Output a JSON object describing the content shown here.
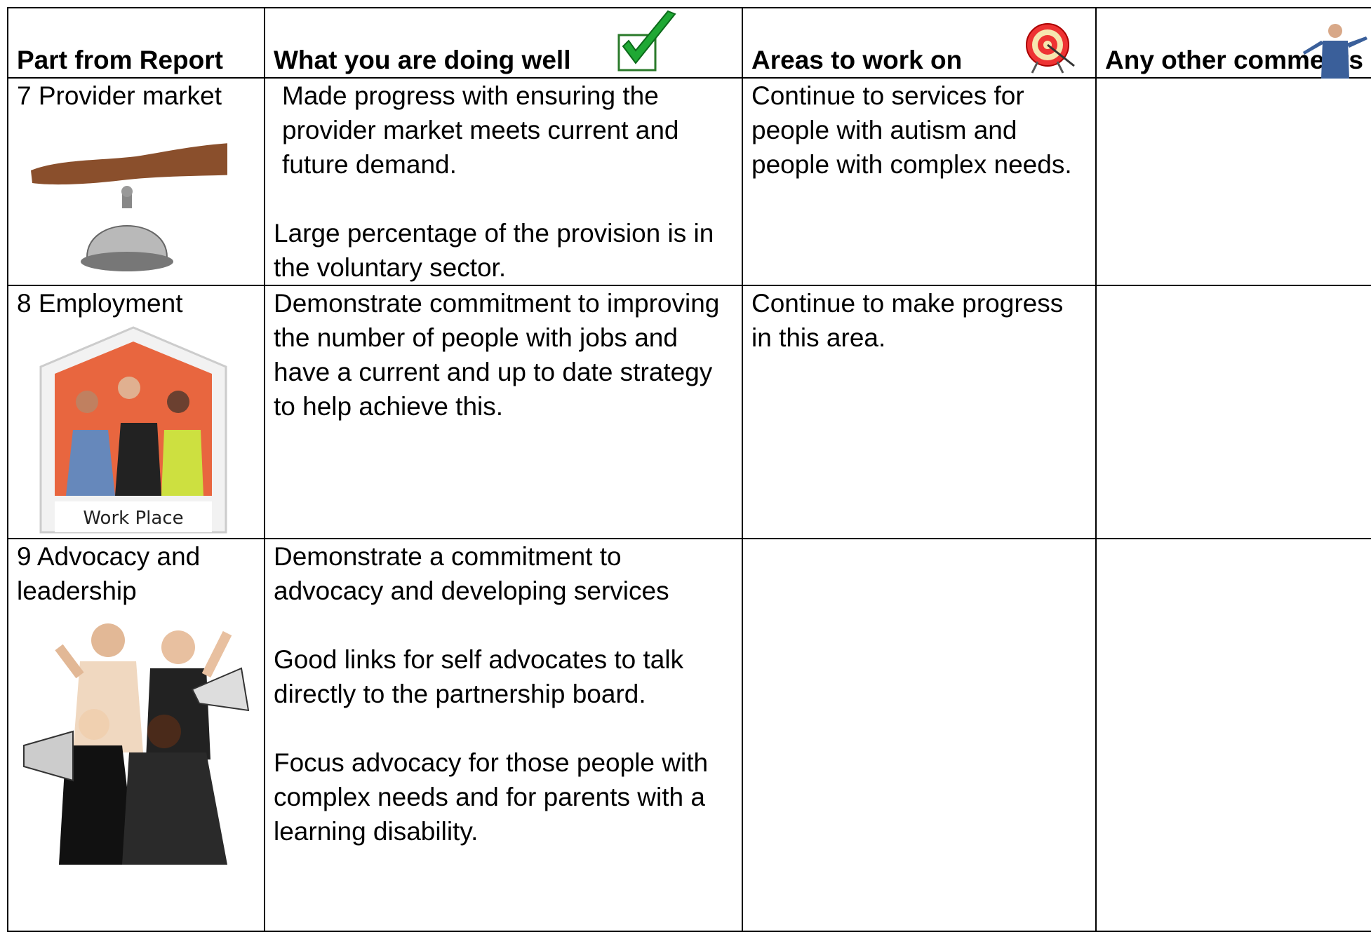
{
  "table": {
    "header": [
      "Part from Report",
      "What you are doing well",
      "Areas to work on",
      "Any other comments"
    ],
    "rows": [
      {
        "part": "7 Provider market",
        "doing_well": [
          "Made progress with ensuring the provider market meets current and future demand.",
          "Large percentage of the provision is in the voluntary sector."
        ],
        "work_on": [
          "Continue to services for people with autism and people with complex needs."
        ]
      },
      {
        "part": "8 Employment",
        "image_label": "Work Place",
        "doing_well": [
          "Demonstrate commitment to improving the number of people with jobs and have a current and up to date strategy to help achieve this."
        ],
        "work_on": [
          "Continue to make progress in this area."
        ]
      },
      {
        "part": "9 Advocacy and leadership",
        "doing_well": [
          "Demonstrate a commitment to advocacy and developing services",
          "Good links for self advocates to talk directly to the partnership board.",
          "Focus advocacy for those people with complex needs and for parents with a learning disability."
        ]
      }
    ]
  }
}
